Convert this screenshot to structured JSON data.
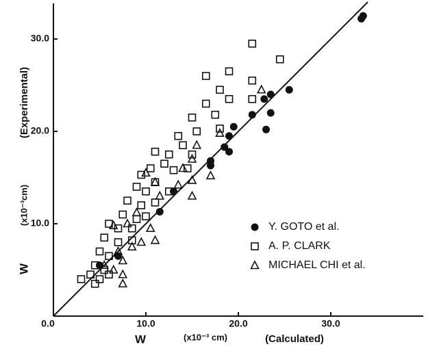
{
  "chart_data": {
    "type": "scatter",
    "xlabel": [
      "W",
      "(x10⁻³ cm)",
      "(Calculated)"
    ],
    "ylabel": [
      "W",
      "(x10⁻³cm)",
      "(Experimental)"
    ],
    "xlim": [
      0,
      40
    ],
    "ylim": [
      0,
      34
    ],
    "xticks": [
      {
        "value": 0,
        "label": "0.0"
      },
      {
        "value": 10,
        "label": "10.0"
      },
      {
        "value": 20,
        "label": "20.0"
      },
      {
        "value": 30,
        "label": "30.0"
      }
    ],
    "yticks": [
      {
        "value": 10,
        "label": "10.0"
      },
      {
        "value": 20,
        "label": "20.0"
      },
      {
        "value": 30,
        "label": "30.0"
      }
    ],
    "reference_line": true,
    "grid": false,
    "series": [
      {
        "name": "Y. GOTO et al.",
        "color": "#111111",
        "marker": "filled-circle",
        "x": [
          33.5,
          33.3,
          25.5,
          23.5,
          22.8,
          23.5,
          23,
          21.5,
          19.5,
          19,
          18.5,
          19,
          17,
          17,
          13,
          11.5,
          7,
          5
        ],
        "y": [
          32.5,
          32.2,
          24.5,
          24,
          23.5,
          22,
          20.2,
          21.8,
          20.5,
          19.5,
          18.3,
          17.8,
          16.8,
          16.3,
          13.5,
          11.3,
          6.5,
          5.5
        ]
      },
      {
        "name": "A. P. CLARK",
        "color": "#111111",
        "marker": "open-square",
        "x": [
          21.5,
          24.5,
          16.5,
          19,
          21.5,
          18,
          16.5,
          19,
          21.5,
          17.5,
          15,
          18,
          15.5,
          13.5,
          14,
          11,
          12.5,
          15,
          10.5,
          12,
          13,
          9.5,
          11,
          14.5,
          9,
          10,
          12.5,
          8,
          9.5,
          11,
          7.5,
          9,
          10,
          6,
          7,
          8.5,
          5.5,
          7,
          8.5,
          5,
          6,
          4.5,
          5.5,
          3,
          4,
          5,
          6,
          4.5
        ],
        "y": [
          29.5,
          27.8,
          26,
          26.5,
          25.5,
          24.5,
          23,
          23.5,
          23.5,
          21.8,
          21.5,
          20.3,
          20,
          19.5,
          18.5,
          17.8,
          17.5,
          17.5,
          16,
          16.5,
          15.8,
          15.3,
          14.5,
          16,
          14,
          13.5,
          13.5,
          12.5,
          12,
          12.3,
          11,
          10.5,
          10.8,
          10,
          9.5,
          9.5,
          8.5,
          8,
          8.2,
          7,
          6.5,
          5.5,
          5,
          4,
          4.5,
          4,
          4.5,
          3.5
        ]
      },
      {
        "name": "MICHAEL CHI et al.",
        "color": "#111111",
        "marker": "open-triangle",
        "x": [
          22.5,
          18,
          15.5,
          15,
          14,
          17,
          15,
          13.5,
          15,
          10,
          11,
          11.5,
          9,
          8,
          10.5,
          11,
          8.5,
          9.5,
          6.5,
          7,
          7.5,
          6.5,
          7.5,
          7.5,
          5.5
        ],
        "y": [
          24.5,
          19.8,
          18.5,
          17,
          16,
          15.2,
          14.7,
          14.2,
          13,
          15.5,
          14.5,
          13,
          11.2,
          10,
          9.5,
          8.2,
          7.5,
          8,
          9.8,
          7,
          6,
          5,
          4.5,
          3.5,
          5.5
        ]
      }
    ]
  }
}
